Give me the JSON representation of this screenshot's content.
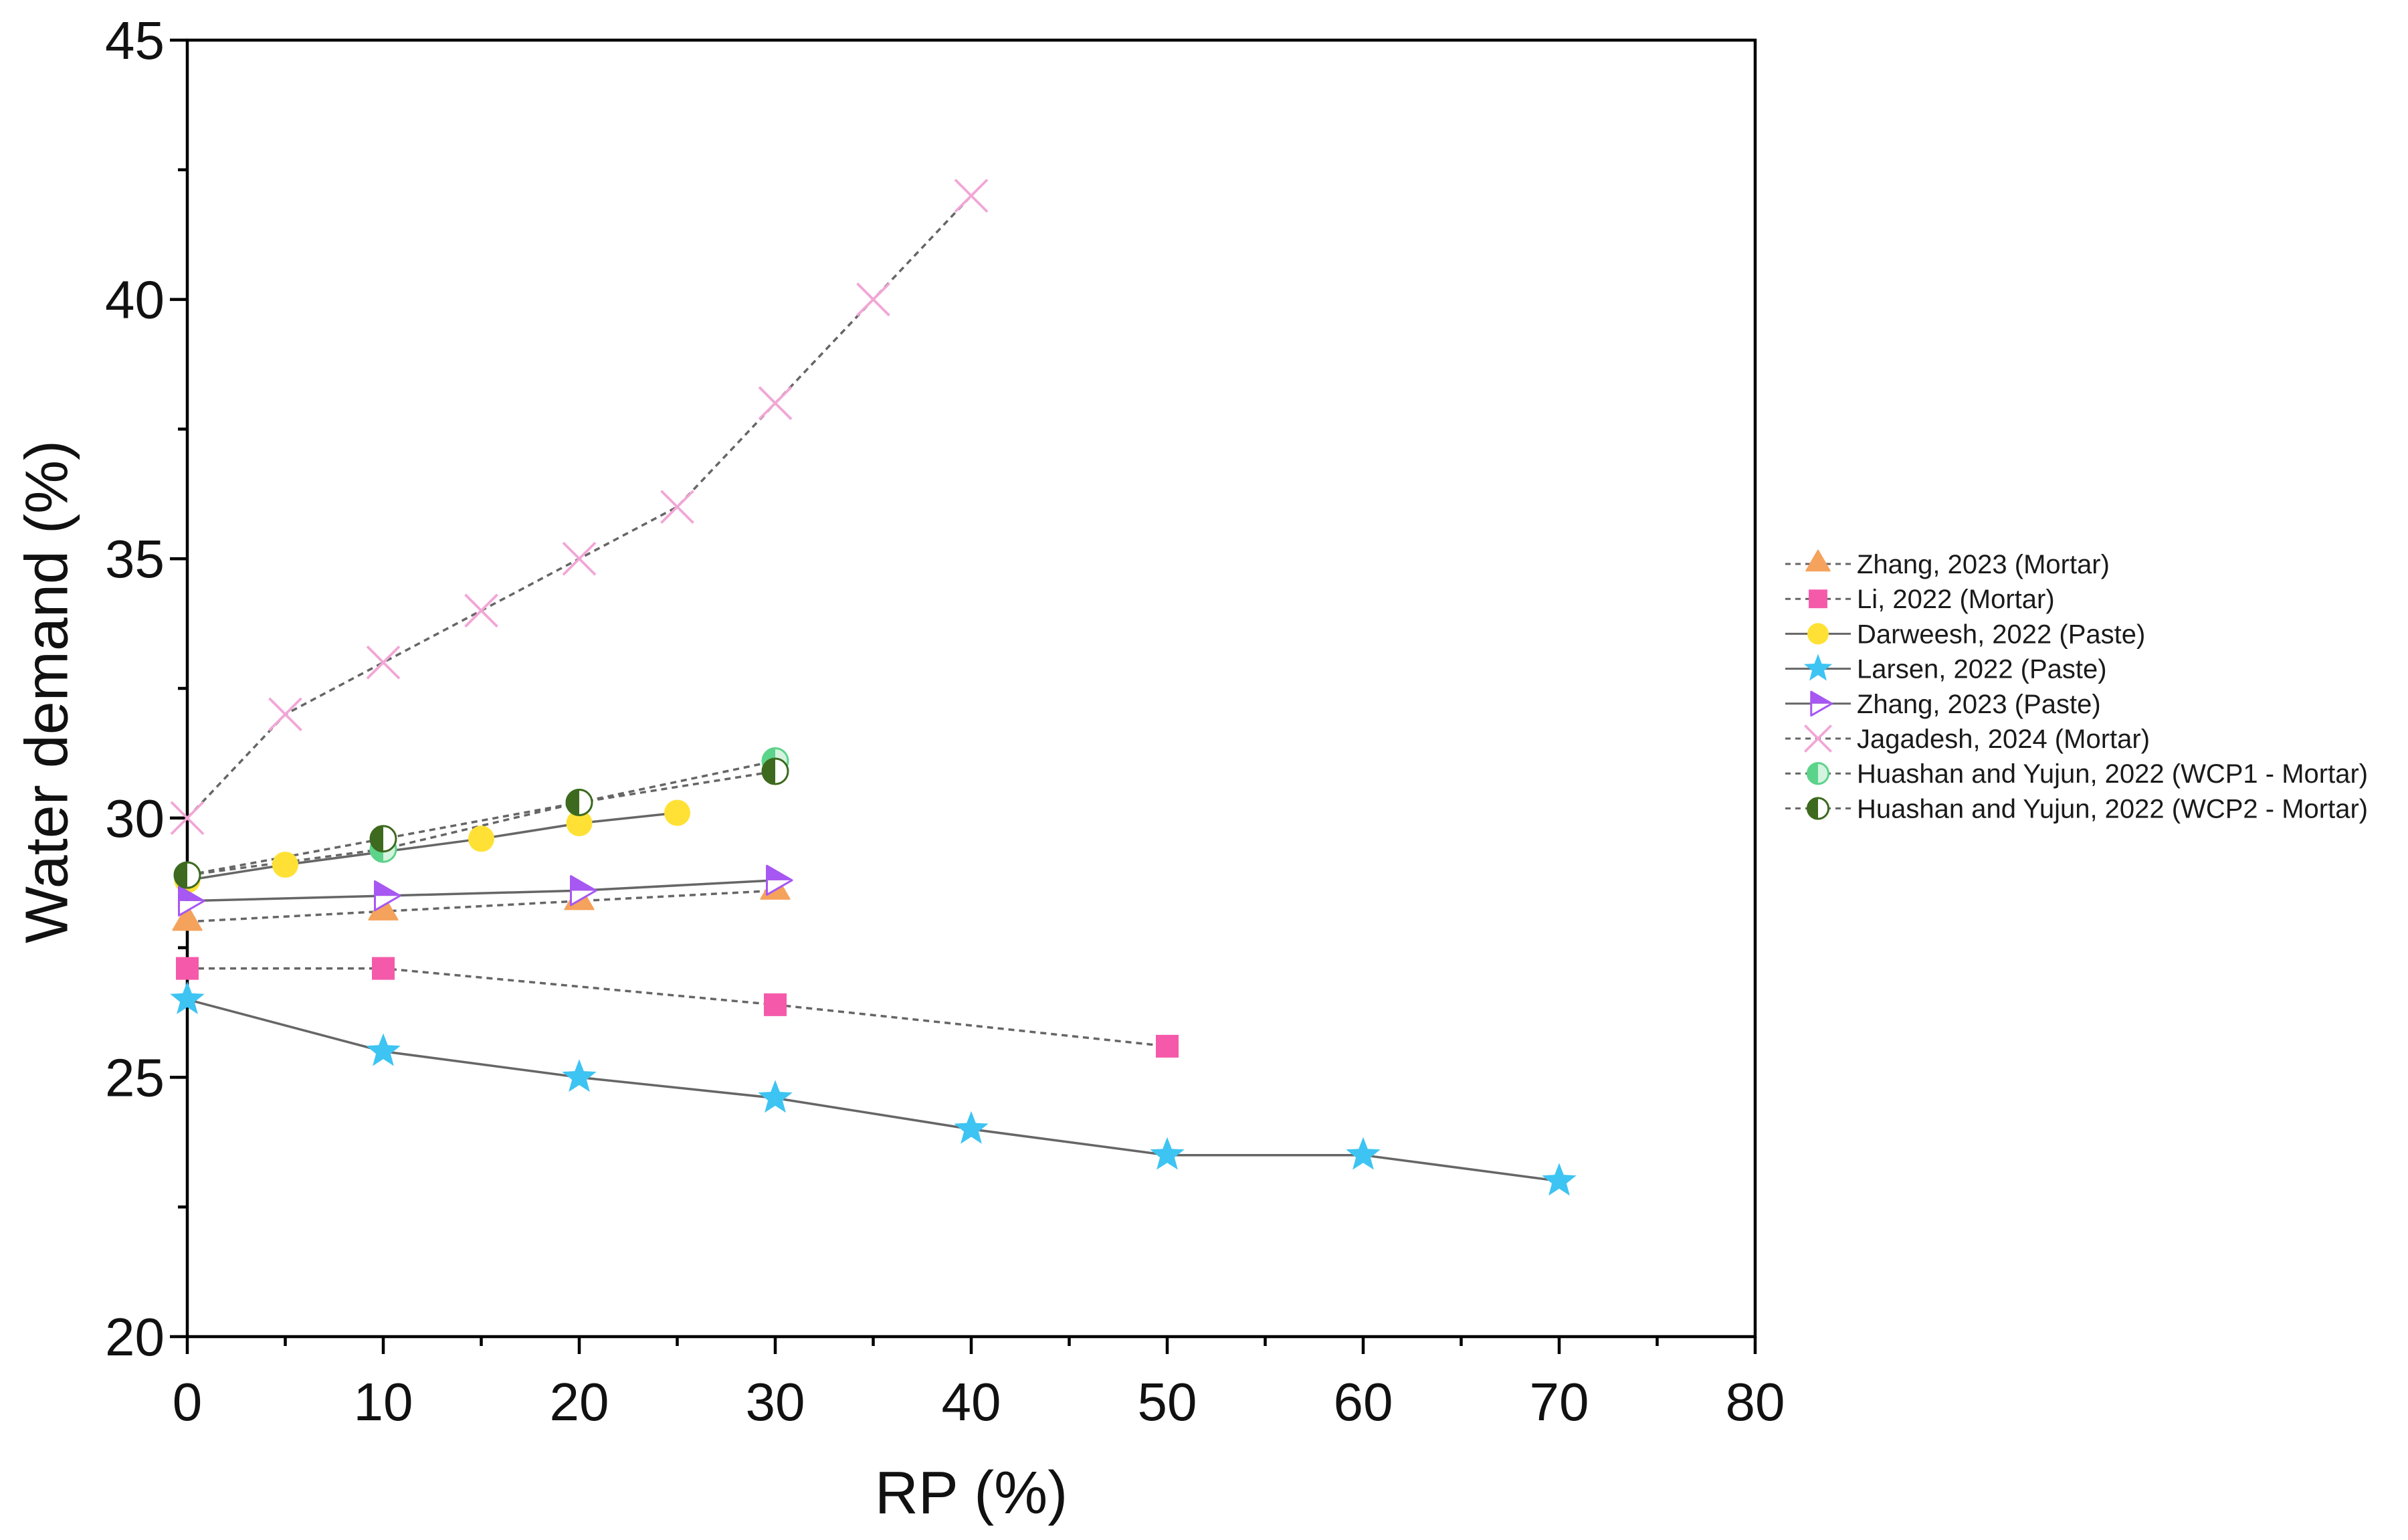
{
  "chart_data": {
    "type": "line",
    "xlabel": "RP (%)",
    "ylabel": "Water demand (%)",
    "xlim": [
      0,
      80
    ],
    "ylim": [
      20,
      45
    ],
    "x_ticks": [
      0,
      10,
      20,
      30,
      40,
      50,
      60,
      70,
      80
    ],
    "y_ticks": [
      20,
      25,
      30,
      35,
      40,
      45
    ],
    "grid": false,
    "legend": "right",
    "line_color": "#666666",
    "series": [
      {
        "name": "Zhang, 2023 (Mortar)",
        "marker": "triangle-up",
        "color": "#F5A25D",
        "dashed": true,
        "x": [
          0,
          10,
          20,
          30
        ],
        "y": [
          28.0,
          28.2,
          28.4,
          28.6
        ]
      },
      {
        "name": "Li, 2022 (Mortar)",
        "marker": "square",
        "color": "#F55AAA",
        "dashed": true,
        "x": [
          0,
          10,
          30,
          50
        ],
        "y": [
          27.1,
          27.1,
          26.4,
          25.6
        ]
      },
      {
        "name": "Darweesh, 2022 (Paste)",
        "marker": "circle",
        "color": "#FFE135",
        "dashed": false,
        "x": [
          0,
          5,
          15,
          20,
          25
        ],
        "y": [
          28.8,
          29.1,
          29.6,
          29.9,
          30.1
        ]
      },
      {
        "name": "Larsen, 2022 (Paste)",
        "marker": "star",
        "color": "#3DC4F2",
        "dashed": false,
        "x": [
          0,
          10,
          20,
          30,
          40,
          50,
          60,
          70
        ],
        "y": [
          26.5,
          25.5,
          25.0,
          24.6,
          24.0,
          23.5,
          23.5,
          23.0
        ]
      },
      {
        "name": "Zhang, 2023 (Paste)",
        "marker": "triangle-right-half",
        "color": "#A757F2",
        "color_light": "#FFFFFF",
        "dashed": false,
        "x": [
          0,
          10,
          20,
          30
        ],
        "y": [
          28.4,
          28.5,
          28.6,
          28.8
        ]
      },
      {
        "name": "Jagadesh, 2024 (Mortar)",
        "marker": "x",
        "color": "#F2A6D6",
        "dashed": true,
        "x": [
          0,
          5,
          10,
          15,
          20,
          25,
          30,
          35,
          40
        ],
        "y": [
          30,
          32,
          33,
          34,
          35,
          36,
          38,
          40,
          42
        ]
      },
      {
        "name": "Huashan and Yujun, 2022 (WCP1 - Mortar)",
        "marker": "circle-half",
        "color": "#5CD38A",
        "color_light": "#D4F4DF",
        "dashed": true,
        "x": [
          0,
          10,
          20,
          30
        ],
        "y": [
          28.9,
          29.4,
          30.3,
          31.1
        ]
      },
      {
        "name": "Huashan and Yujun, 2022 (WCP2 - Mortar)",
        "marker": "circle-half",
        "color": "#3D6A1E",
        "color_light": "#FFFFFF",
        "dashed": true,
        "x": [
          0,
          10,
          20,
          30
        ],
        "y": [
          28.9,
          29.6,
          30.3,
          30.9
        ]
      }
    ]
  }
}
